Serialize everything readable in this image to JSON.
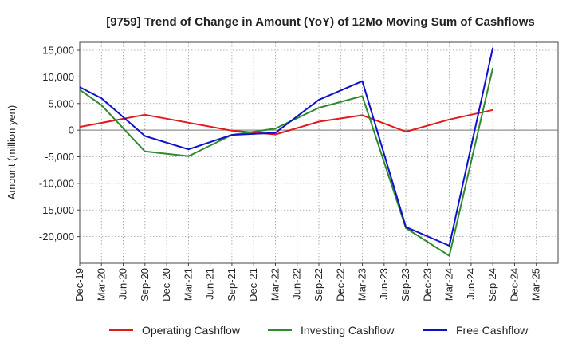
{
  "chart_data": {
    "type": "line",
    "title": "[9759]  Trend of Change in Amount (YoY) of 12Mo Moving Sum of Cashflows",
    "xlabel": "",
    "ylabel": "Amount (million yen)",
    "ylim": [
      -25000,
      16500
    ],
    "yticks": [
      15000,
      10000,
      5000,
      0,
      -5000,
      -10000,
      -15000,
      -20000
    ],
    "ytick_labels": [
      "15,000",
      "10,000",
      "5,000",
      "0",
      "-5,000",
      "-10,000",
      "-15,000",
      "-20,000"
    ],
    "categories": [
      "Dec-19",
      "Mar-20",
      "Jun-20",
      "Sep-20",
      "Dec-20",
      "Mar-21",
      "Jun-21",
      "Sep-21",
      "Dec-21",
      "Mar-22",
      "Jun-22",
      "Sep-22",
      "Dec-22",
      "Mar-23",
      "Jun-23",
      "Sep-23",
      "Dec-23",
      "Mar-24",
      "Jun-24",
      "Sep-24",
      "Dec-24",
      "Mar-25"
    ],
    "grid": true,
    "legend_position": "bottom",
    "series": [
      {
        "name": "Operating Cashflow",
        "color": "#e31a1c",
        "values": [
          600,
          null,
          null,
          2900,
          null,
          1400,
          null,
          -100,
          null,
          -800,
          null,
          1600,
          null,
          2800,
          null,
          -300,
          null,
          2000,
          null,
          3800,
          null,
          null
        ]
      },
      {
        "name": "Investing Cashflow",
        "color": "#2e8b2e",
        "values": [
          7600,
          4700,
          null,
          -4000,
          null,
          -4900,
          null,
          -900,
          null,
          300,
          null,
          4200,
          null,
          6400,
          null,
          -18400,
          null,
          -23600,
          null,
          11700,
          null,
          null
        ]
      },
      {
        "name": "Free Cashflow",
        "color": "#1010cc",
        "values": [
          8100,
          6000,
          null,
          -1100,
          null,
          -3600,
          null,
          -900,
          null,
          -500,
          null,
          5700,
          null,
          9200,
          null,
          -18200,
          null,
          -21700,
          null,
          15500,
          null,
          null
        ]
      }
    ]
  }
}
